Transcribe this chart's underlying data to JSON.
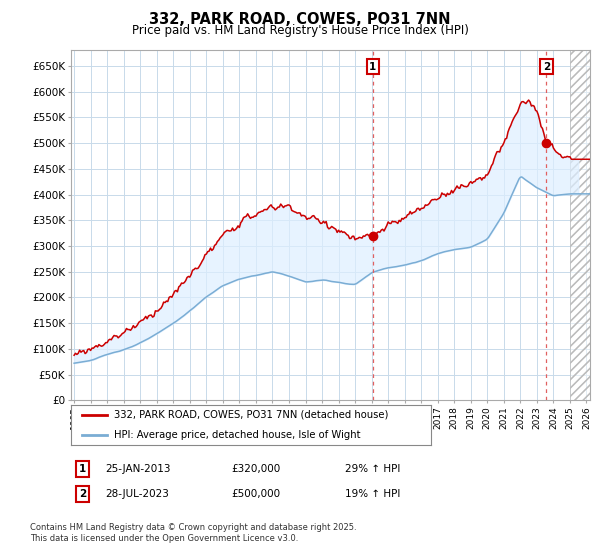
{
  "title": "332, PARK ROAD, COWES, PO31 7NN",
  "subtitle": "Price paid vs. HM Land Registry's House Price Index (HPI)",
  "legend_line1": "332, PARK ROAD, COWES, PO31 7NN (detached house)",
  "legend_line2": "HPI: Average price, detached house, Isle of Wight",
  "footnote": "Contains HM Land Registry data © Crown copyright and database right 2025.\nThis data is licensed under the Open Government Licence v3.0.",
  "sale1_date": "25-JAN-2013",
  "sale1_price": "£320,000",
  "sale1_hpi": "29% ↑ HPI",
  "sale2_date": "28-JUL-2023",
  "sale2_price": "£500,000",
  "sale2_hpi": "19% ↑ HPI",
  "red_color": "#cc0000",
  "blue_color": "#7aadd4",
  "shade_color": "#ddeeff",
  "dashed_red": "#e06060",
  "background_color": "#ffffff",
  "grid_color": "#c8daea",
  "ylim": [
    0,
    680000
  ],
  "yticks": [
    0,
    50000,
    100000,
    150000,
    200000,
    250000,
    300000,
    350000,
    400000,
    450000,
    500000,
    550000,
    600000,
    650000
  ],
  "ytick_labels": [
    "£0",
    "£50K",
    "£100K",
    "£150K",
    "£200K",
    "£250K",
    "£300K",
    "£350K",
    "£400K",
    "£450K",
    "£500K",
    "£550K",
    "£600K",
    "£650K"
  ],
  "xlim_start": 1994.8,
  "xlim_end": 2026.2,
  "future_start": 2025.0,
  "sale1_x": 2013.07,
  "sale1_y": 320000,
  "sale2_x": 2023.57,
  "sale2_y": 500000
}
